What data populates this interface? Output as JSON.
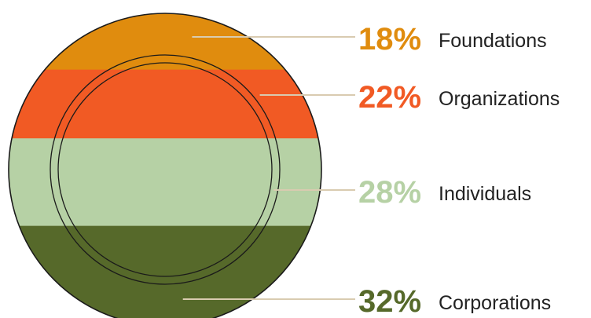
{
  "chart_data": {
    "type": "pie",
    "title": "",
    "unit": "%",
    "series": [
      {
        "name": "Foundations",
        "value": 18,
        "color": "#E08C0E"
      },
      {
        "name": "Organizations",
        "value": 22,
        "color": "#F15A24"
      },
      {
        "name": "Individuals",
        "value": 28,
        "color": "#B6D1A5"
      },
      {
        "name": "Corporations",
        "value": 32,
        "color": "#56692A"
      }
    ],
    "labels": [
      {
        "percent": "18%",
        "name": "Foundations"
      },
      {
        "percent": "22%",
        "name": "Organizations"
      },
      {
        "percent": "28%",
        "name": "Individuals"
      },
      {
        "percent": "32%",
        "name": "Corporations"
      }
    ],
    "leader_color": "#D9CBB0",
    "outline_color": "#1a1a1a"
  }
}
